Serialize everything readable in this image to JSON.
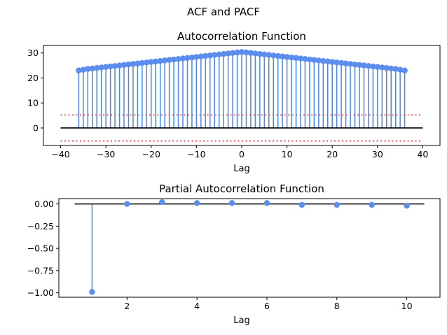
{
  "figure": {
    "suptitle": "ACF and PACF"
  },
  "colors": {
    "stem": "#4a86e8",
    "marker": "#5b8def",
    "baseline": "#000000",
    "conf": "#e41a1c",
    "axis": "#000000"
  },
  "chart_data": [
    {
      "type": "stem",
      "title": "Autocorrelation Function",
      "xlabel": "Lag",
      "ylabel": "",
      "xlim": [
        -43.8,
        43.8
      ],
      "ylim": [
        -7,
        33
      ],
      "xticks": [
        -40,
        -30,
        -20,
        -10,
        0,
        10,
        20,
        30,
        40
      ],
      "xtick_labels": [
        "−40",
        "−30",
        "−20",
        "−10",
        "0",
        "10",
        "20",
        "30",
        "40"
      ],
      "yticks": [
        0,
        10,
        20,
        30
      ],
      "ytick_labels": [
        "0",
        "10",
        "20",
        "30"
      ],
      "grid": false,
      "baseline": {
        "y": 0,
        "x": [
          -40,
          40
        ]
      },
      "confidence_bounds": [
        5.2,
        -5.2
      ],
      "x_start": -36,
      "x_end": 36,
      "values": [
        23.0,
        23.3,
        23.6,
        23.8,
        24.0,
        24.2,
        24.4,
        24.6,
        24.8,
        25.0,
        25.2,
        25.4,
        25.6,
        25.8,
        26.0,
        26.2,
        26.4,
        26.6,
        26.8,
        27.0,
        27.2,
        27.4,
        27.6,
        27.8,
        28.0,
        28.2,
        28.4,
        28.6,
        28.8,
        29.0,
        29.2,
        29.4,
        29.6,
        29.8,
        30.0,
        30.2,
        30.4,
        30.2,
        30.0,
        29.8,
        29.6,
        29.4,
        29.2,
        29.0,
        28.8,
        28.6,
        28.4,
        28.2,
        28.0,
        27.8,
        27.6,
        27.4,
        27.2,
        27.0,
        26.8,
        26.6,
        26.4,
        26.2,
        26.0,
        25.8,
        25.6,
        25.4,
        25.2,
        25.0,
        24.8,
        24.6,
        24.4,
        24.2,
        24.0,
        23.8,
        23.6,
        23.3,
        23.0
      ]
    },
    {
      "type": "stem",
      "title": "Partial Autocorrelation Function",
      "xlabel": "Lag",
      "ylabel": "",
      "xlim": [
        0.05,
        10.95
      ],
      "ylim": [
        -1.05,
        0.06
      ],
      "xticks": [
        2,
        4,
        6,
        8,
        10
      ],
      "xtick_labels": [
        "2",
        "4",
        "6",
        "8",
        "10"
      ],
      "yticks": [
        0.0,
        -0.25,
        -0.5,
        -0.75,
        -1.0
      ],
      "ytick_labels": [
        "0.00",
        "−0.25",
        "−0.50",
        "−0.75",
        "−1.00"
      ],
      "grid": false,
      "baseline": {
        "y": 0,
        "x": [
          0.5,
          10.5
        ]
      },
      "x": [
        1,
        2,
        3,
        4,
        5,
        6,
        7,
        8,
        9,
        10
      ],
      "values": [
        -0.99,
        0.0,
        0.02,
        0.01,
        0.01,
        0.01,
        -0.01,
        -0.01,
        -0.01,
        -0.02
      ]
    }
  ]
}
